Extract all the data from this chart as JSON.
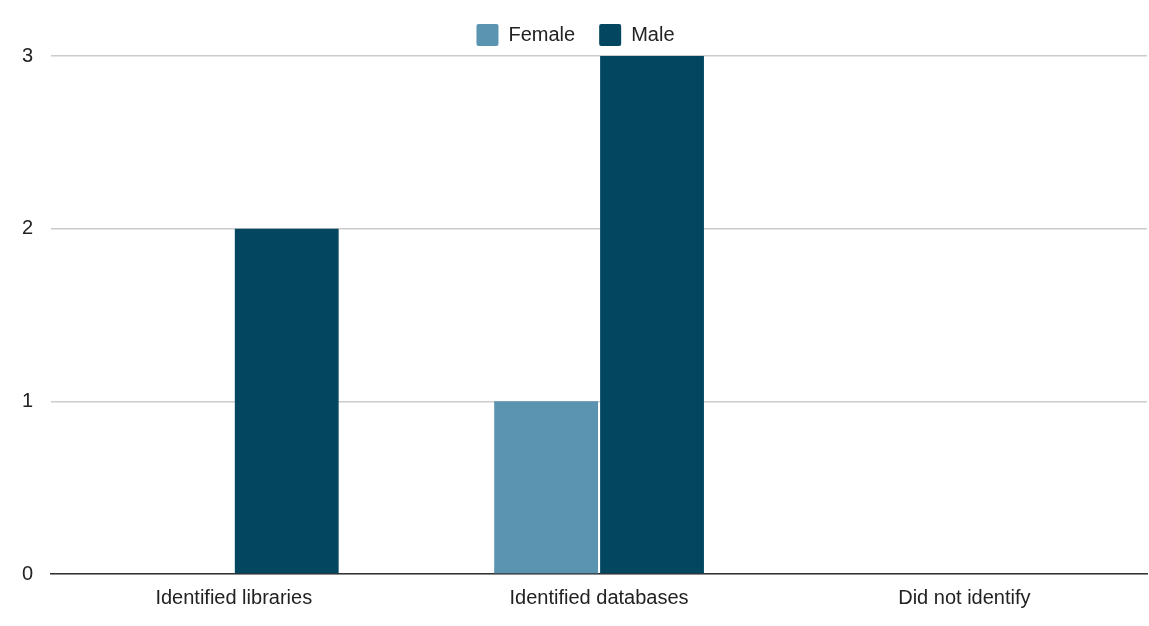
{
  "chart_data": {
    "type": "bar",
    "categories": [
      "Identified libraries",
      "Identified databases",
      "Did not identify"
    ],
    "series": [
      {
        "name": "Female",
        "color": "#5b94b1",
        "values": [
          0,
          1,
          0
        ]
      },
      {
        "name": "Male",
        "color": "#02465f",
        "values": [
          2,
          3,
          0
        ]
      }
    ],
    "ylim": [
      0,
      3
    ],
    "yticks": [
      0,
      1,
      2,
      3
    ],
    "grid": "y",
    "legend": "top"
  }
}
